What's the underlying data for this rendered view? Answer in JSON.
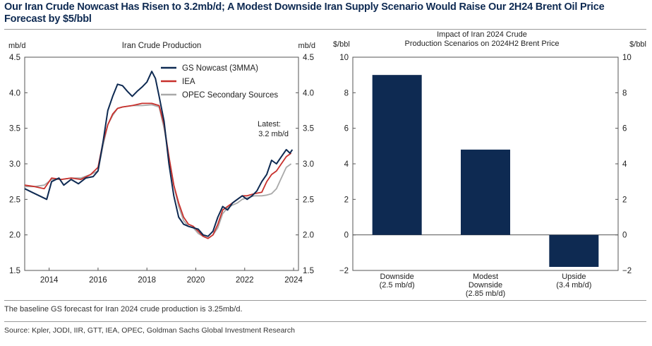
{
  "headline": "Our Iran Crude Nowcast Has Risen to 3.2mb/d; A Modest Downside Iran Supply Scenario Would Raise Our 2H24 Brent Oil Price Forecast by $5/bbl",
  "note": "The baseline GS forecast for Iran 2024 crude production is 3.25mb/d.",
  "source": "Source: Kpler, JODI, IIR, GTT, IEA, OPEC, Goldman Sachs Global Investment Research",
  "chart_data": [
    {
      "type": "line",
      "title": "Iran Crude Production",
      "ylabel_left": "mb/d",
      "ylabel_right": "mb/d",
      "ylim": [
        1.5,
        4.5
      ],
      "yticks": [
        "1.5",
        "2.0",
        "2.5",
        "3.0",
        "3.5",
        "4.0",
        "4.5"
      ],
      "xlim": [
        2013.0,
        2024.2
      ],
      "xticks": [
        "2014",
        "2016",
        "2018",
        "2020",
        "2022",
        "2024"
      ],
      "legend_position": "top-right",
      "annotation": [
        "Latest:",
        "3.2 mb/d"
      ],
      "series": [
        {
          "name": "GS Nowcast (3MMA)",
          "color": "#0e2a52",
          "points": [
            [
              2013.0,
              2.65
            ],
            [
              2013.3,
              2.6
            ],
            [
              2013.6,
              2.55
            ],
            [
              2013.9,
              2.5
            ],
            [
              2014.1,
              2.75
            ],
            [
              2014.4,
              2.8
            ],
            [
              2014.6,
              2.7
            ],
            [
              2014.9,
              2.78
            ],
            [
              2015.2,
              2.72
            ],
            [
              2015.5,
              2.8
            ],
            [
              2015.8,
              2.82
            ],
            [
              2016.0,
              2.9
            ],
            [
              2016.2,
              3.3
            ],
            [
              2016.4,
              3.75
            ],
            [
              2016.6,
              3.95
            ],
            [
              2016.8,
              4.12
            ],
            [
              2017.0,
              4.1
            ],
            [
              2017.2,
              4.02
            ],
            [
              2017.4,
              3.95
            ],
            [
              2017.6,
              4.02
            ],
            [
              2017.8,
              4.08
            ],
            [
              2018.0,
              4.15
            ],
            [
              2018.2,
              4.3
            ],
            [
              2018.35,
              4.2
            ],
            [
              2018.5,
              3.95
            ],
            [
              2018.7,
              3.6
            ],
            [
              2018.9,
              3.0
            ],
            [
              2019.1,
              2.55
            ],
            [
              2019.3,
              2.25
            ],
            [
              2019.5,
              2.15
            ],
            [
              2019.7,
              2.12
            ],
            [
              2019.9,
              2.1
            ],
            [
              2020.1,
              2.08
            ],
            [
              2020.3,
              2.0
            ],
            [
              2020.5,
              1.98
            ],
            [
              2020.7,
              2.05
            ],
            [
              2020.9,
              2.25
            ],
            [
              2021.1,
              2.4
            ],
            [
              2021.3,
              2.35
            ],
            [
              2021.5,
              2.45
            ],
            [
              2021.7,
              2.5
            ],
            [
              2021.9,
              2.55
            ],
            [
              2022.1,
              2.5
            ],
            [
              2022.3,
              2.55
            ],
            [
              2022.5,
              2.62
            ],
            [
              2022.7,
              2.75
            ],
            [
              2022.9,
              2.85
            ],
            [
              2023.1,
              3.05
            ],
            [
              2023.3,
              3.0
            ],
            [
              2023.5,
              3.1
            ],
            [
              2023.7,
              3.2
            ],
            [
              2023.85,
              3.15
            ],
            [
              2023.95,
              3.2
            ]
          ]
        },
        {
          "name": "IEA",
          "color": "#c8302c",
          "points": [
            [
              2013.0,
              2.7
            ],
            [
              2013.4,
              2.68
            ],
            [
              2013.8,
              2.65
            ],
            [
              2014.1,
              2.8
            ],
            [
              2014.5,
              2.78
            ],
            [
              2014.9,
              2.8
            ],
            [
              2015.3,
              2.78
            ],
            [
              2015.7,
              2.85
            ],
            [
              2016.0,
              2.95
            ],
            [
              2016.2,
              3.3
            ],
            [
              2016.4,
              3.55
            ],
            [
              2016.6,
              3.7
            ],
            [
              2016.8,
              3.78
            ],
            [
              2017.0,
              3.8
            ],
            [
              2017.4,
              3.82
            ],
            [
              2017.8,
              3.85
            ],
            [
              2018.2,
              3.85
            ],
            [
              2018.5,
              3.82
            ],
            [
              2018.7,
              3.55
            ],
            [
              2018.9,
              3.1
            ],
            [
              2019.1,
              2.7
            ],
            [
              2019.3,
              2.45
            ],
            [
              2019.5,
              2.25
            ],
            [
              2019.7,
              2.15
            ],
            [
              2019.9,
              2.12
            ],
            [
              2020.1,
              2.05
            ],
            [
              2020.3,
              1.98
            ],
            [
              2020.5,
              1.95
            ],
            [
              2020.7,
              2.0
            ],
            [
              2020.9,
              2.15
            ],
            [
              2021.1,
              2.35
            ],
            [
              2021.3,
              2.4
            ],
            [
              2021.5,
              2.45
            ],
            [
              2021.7,
              2.5
            ],
            [
              2021.9,
              2.55
            ],
            [
              2022.1,
              2.55
            ],
            [
              2022.4,
              2.58
            ],
            [
              2022.7,
              2.6
            ],
            [
              2022.9,
              2.75
            ],
            [
              2023.1,
              2.85
            ],
            [
              2023.3,
              2.9
            ],
            [
              2023.5,
              3.0
            ],
            [
              2023.7,
              3.1
            ],
            [
              2023.9,
              3.15
            ]
          ]
        },
        {
          "name": "OPEC Secondary Sources",
          "color": "#a9a9a9",
          "points": [
            [
              2013.0,
              2.68
            ],
            [
              2013.4,
              2.68
            ],
            [
              2013.8,
              2.7
            ],
            [
              2014.1,
              2.78
            ],
            [
              2014.5,
              2.78
            ],
            [
              2014.9,
              2.8
            ],
            [
              2015.3,
              2.8
            ],
            [
              2015.7,
              2.85
            ],
            [
              2016.0,
              2.9
            ],
            [
              2016.2,
              3.25
            ],
            [
              2016.4,
              3.55
            ],
            [
              2016.6,
              3.68
            ],
            [
              2016.8,
              3.78
            ],
            [
              2017.0,
              3.8
            ],
            [
              2017.4,
              3.82
            ],
            [
              2017.8,
              3.82
            ],
            [
              2018.2,
              3.83
            ],
            [
              2018.5,
              3.8
            ],
            [
              2018.7,
              3.5
            ],
            [
              2018.9,
              3.1
            ],
            [
              2019.1,
              2.7
            ],
            [
              2019.3,
              2.4
            ],
            [
              2019.5,
              2.2
            ],
            [
              2019.7,
              2.12
            ],
            [
              2019.9,
              2.1
            ],
            [
              2020.1,
              2.02
            ],
            [
              2020.3,
              1.98
            ],
            [
              2020.5,
              1.95
            ],
            [
              2020.7,
              2.0
            ],
            [
              2020.9,
              2.1
            ],
            [
              2021.1,
              2.3
            ],
            [
              2021.3,
              2.38
            ],
            [
              2021.5,
              2.42
            ],
            [
              2021.7,
              2.45
            ],
            [
              2021.9,
              2.5
            ],
            [
              2022.1,
              2.52
            ],
            [
              2022.4,
              2.55
            ],
            [
              2022.7,
              2.55
            ],
            [
              2022.9,
              2.56
            ],
            [
              2023.1,
              2.58
            ],
            [
              2023.3,
              2.65
            ],
            [
              2023.5,
              2.8
            ],
            [
              2023.7,
              2.95
            ],
            [
              2023.9,
              3.0
            ]
          ]
        }
      ]
    },
    {
      "type": "bar",
      "title": [
        "Impact of Iran 2024 Crude",
        "Production Scenarios on 2024H2 Brent Price"
      ],
      "ylabel_left": "$/bbl",
      "ylabel_right": "$/bbl",
      "ylim": [
        -2,
        10
      ],
      "yticks": [
        "-2",
        "0",
        "2",
        "4",
        "6",
        "8",
        "10"
      ],
      "color": "#0e2a52",
      "categories": [
        [
          "Downside",
          "(2.5 mb/d)"
        ],
        [
          "Modest",
          "Downside",
          "(2.85 mb/d)"
        ],
        [
          "Upside",
          "(3.4 mb/d)"
        ]
      ],
      "values": [
        9.0,
        4.8,
        -1.8
      ]
    }
  ]
}
